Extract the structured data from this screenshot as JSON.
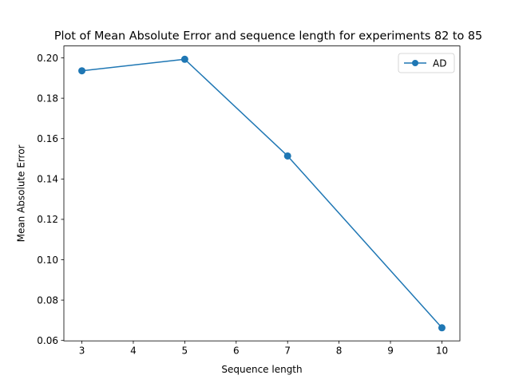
{
  "chart_data": {
    "type": "line",
    "title": "Plot of Mean Absolute Error and sequence length for experiments 82 to 85",
    "xlabel": "Sequence length",
    "ylabel": "Mean Absolute Error",
    "xlim": [
      2.65,
      10.35
    ],
    "ylim": [
      0.0598,
      0.2059
    ],
    "x_ticks": [
      3,
      4,
      5,
      6,
      7,
      8,
      9,
      10
    ],
    "y_ticks": [
      0.06,
      0.08,
      0.1,
      0.12,
      0.14,
      0.16,
      0.18,
      0.2
    ],
    "x_tick_labels": [
      "3",
      "4",
      "5",
      "6",
      "7",
      "8",
      "9",
      "10"
    ],
    "y_tick_labels": [
      "0.06",
      "0.08",
      "0.10",
      "0.12",
      "0.14",
      "0.16",
      "0.18",
      "0.20"
    ],
    "series": [
      {
        "name": "AD",
        "color": "#1f77b4",
        "marker": "circle",
        "x": [
          3,
          5,
          7,
          10
        ],
        "y": [
          0.1936,
          0.1993,
          0.1514,
          0.0663
        ]
      }
    ],
    "legend_position": "top-right",
    "grid": false
  }
}
